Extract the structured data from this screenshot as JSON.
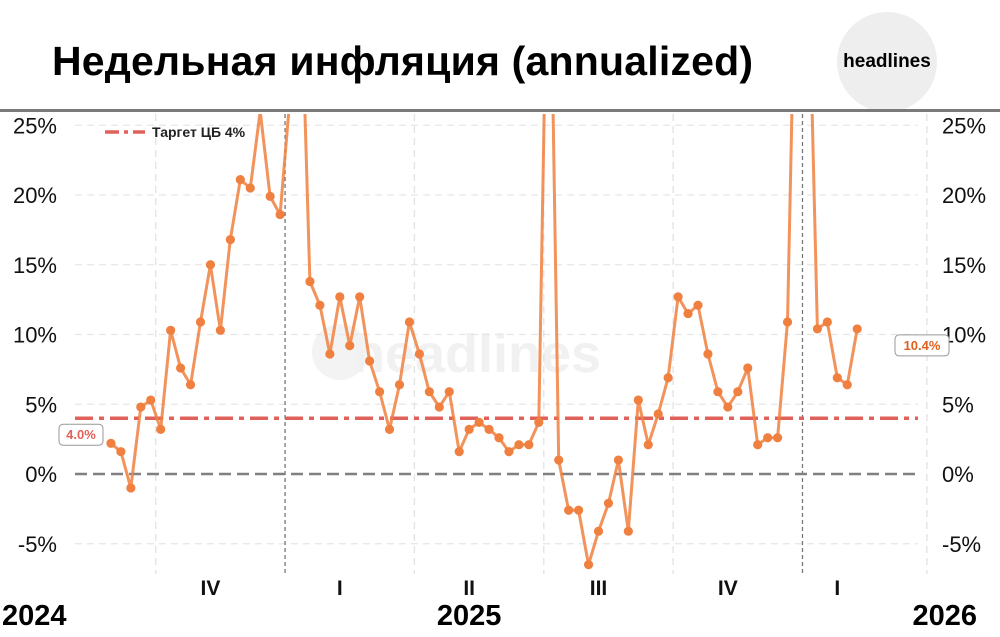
{
  "header": {
    "title": "Недельная инфляция (annualized)",
    "logo_text": "headlines"
  },
  "watermark": "headlines",
  "chart_data": {
    "type": "line",
    "title": "Недельная инфляция (annualized)",
    "ylim": [
      -7,
      25
    ],
    "y_ticks": [
      "25%",
      "20%",
      "15%",
      "10%",
      "5%",
      "0%",
      "-5%"
    ],
    "y_tick_values": [
      25,
      20,
      15,
      10,
      5,
      0,
      -5
    ],
    "grid": true,
    "legend": {
      "position": "top-left",
      "label": "Таргет ЦБ 4%"
    },
    "target": {
      "value": 4.0,
      "label": "4.0%",
      "color": "#e0605a"
    },
    "zero_line": 0,
    "last_label": "10.4%",
    "series_color": "#f08040",
    "quarters": [
      {
        "label": "IV",
        "x": 12.0
      },
      {
        "label": "I",
        "x": 25.0
      },
      {
        "label": "II",
        "x": 38.0
      },
      {
        "label": "III",
        "x": 51.0
      },
      {
        "label": "IV",
        "x": 64.0
      },
      {
        "label": "I",
        "x": 75.0
      }
    ],
    "quarter_dividers": [
      6.5,
      19.5,
      32.5,
      45.5,
      58.5,
      71.5,
      84.0
    ],
    "year_dividers": [
      19.5,
      71.5
    ],
    "years": [
      {
        "label": "2024",
        "x": -4.5
      },
      {
        "label": "2025",
        "x": 38.0
      },
      {
        "label": "2026",
        "x": 82.0
      }
    ],
    "x_range": [
      0,
      81
    ],
    "series": [
      {
        "values": [
          {
            "x": 2,
            "y": 2.2
          },
          {
            "x": 3,
            "y": 1.6
          },
          {
            "x": 4,
            "y": -1.0
          },
          {
            "x": 5,
            "y": 4.8
          },
          {
            "x": 6,
            "y": 5.3
          },
          {
            "x": 7,
            "y": 3.2
          },
          {
            "x": 8,
            "y": 10.3
          },
          {
            "x": 9,
            "y": 7.6
          },
          {
            "x": 10,
            "y": 6.4
          },
          {
            "x": 11,
            "y": 10.9
          },
          {
            "x": 12,
            "y": 15.0
          },
          {
            "x": 13,
            "y": 10.3
          },
          {
            "x": 14,
            "y": 16.8
          },
          {
            "x": 15,
            "y": 21.1
          },
          {
            "x": 16,
            "y": 20.5
          },
          {
            "x": 17,
            "y": 26.0,
            "hidden": true
          },
          {
            "x": 18,
            "y": 19.9
          },
          {
            "x": 19,
            "y": 18.6
          },
          {
            "x": 20,
            "y": 27.0,
            "hidden": true
          },
          {
            "x": 21,
            "y": 38.0,
            "hidden": true
          },
          {
            "x": 22,
            "y": 13.8
          },
          {
            "x": 23,
            "y": 12.1
          },
          {
            "x": 24,
            "y": 8.6
          },
          {
            "x": 25,
            "y": 12.7
          },
          {
            "x": 26,
            "y": 9.2
          },
          {
            "x": 27,
            "y": 12.7
          },
          {
            "x": 28,
            "y": 8.1
          },
          {
            "x": 29,
            "y": 5.9
          },
          {
            "x": 30,
            "y": 3.2
          },
          {
            "x": 31,
            "y": 6.4
          },
          {
            "x": 32,
            "y": 10.9
          },
          {
            "x": 33,
            "y": 8.6
          },
          {
            "x": 34,
            "y": 5.9
          },
          {
            "x": 35,
            "y": 4.8
          },
          {
            "x": 36,
            "y": 5.9
          },
          {
            "x": 37,
            "y": 1.6
          },
          {
            "x": 38,
            "y": 3.2
          },
          {
            "x": 39,
            "y": 3.7
          },
          {
            "x": 40,
            "y": 3.2
          },
          {
            "x": 41,
            "y": 2.6
          },
          {
            "x": 42,
            "y": 1.6
          },
          {
            "x": 43,
            "y": 2.1
          },
          {
            "x": 44,
            "y": 2.1
          },
          {
            "x": 45,
            "y": 3.7
          },
          {
            "x": 46,
            "y": 45.0,
            "hidden": true
          },
          {
            "x": 47,
            "y": 1.0
          },
          {
            "x": 48,
            "y": -2.6
          },
          {
            "x": 49,
            "y": -2.6
          },
          {
            "x": 50,
            "y": -6.5
          },
          {
            "x": 51,
            "y": -4.1
          },
          {
            "x": 52,
            "y": -2.1
          },
          {
            "x": 53,
            "y": 1.0
          },
          {
            "x": 54,
            "y": -4.1
          },
          {
            "x": 55,
            "y": 5.3
          },
          {
            "x": 56,
            "y": 2.1
          },
          {
            "x": 57,
            "y": 4.3
          },
          {
            "x": 58,
            "y": 6.9
          },
          {
            "x": 59,
            "y": 12.7
          },
          {
            "x": 60,
            "y": 11.5
          },
          {
            "x": 61,
            "y": 12.1
          },
          {
            "x": 62,
            "y": 8.6
          },
          {
            "x": 63,
            "y": 5.9
          },
          {
            "x": 64,
            "y": 4.8
          },
          {
            "x": 65,
            "y": 5.9
          },
          {
            "x": 66,
            "y": 7.6
          },
          {
            "x": 67,
            "y": 2.1
          },
          {
            "x": 68,
            "y": 2.6
          },
          {
            "x": 69,
            "y": 2.6
          },
          {
            "x": 70,
            "y": 10.9
          },
          {
            "x": 71,
            "y": 45.0,
            "hidden": true
          },
          {
            "x": 72,
            "y": 40.0,
            "hidden": true
          },
          {
            "x": 73,
            "y": 10.4
          },
          {
            "x": 74,
            "y": 10.9
          },
          {
            "x": 75,
            "y": 6.9
          },
          {
            "x": 76,
            "y": 6.4
          },
          {
            "x": 77,
            "y": 10.4
          }
        ]
      }
    ]
  }
}
